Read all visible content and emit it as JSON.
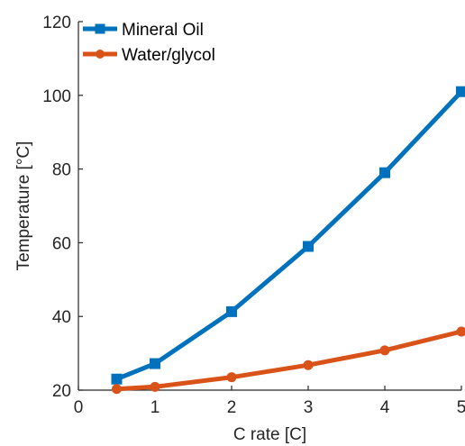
{
  "chart_data": {
    "type": "line",
    "title": "",
    "xlabel": "C rate [C]",
    "ylabel": "Temperature [°C]",
    "xlim": [
      0,
      5
    ],
    "ylim": [
      20,
      120
    ],
    "xticks": [
      0,
      1,
      2,
      3,
      4,
      5
    ],
    "yticks": [
      20,
      40,
      60,
      80,
      100,
      120
    ],
    "grid": false,
    "legend_position": "top-left",
    "series": [
      {
        "name": "Mineral Oil",
        "color": "#0072BD",
        "marker": "square",
        "x": [
          0.5,
          1,
          2,
          3,
          4,
          5
        ],
        "y": [
          23,
          27.2,
          41.3,
          59,
          79,
          101
        ]
      },
      {
        "name": "Water/glycol",
        "color": "#D95319",
        "marker": "circle",
        "x": [
          0.5,
          1,
          2,
          3,
          4,
          5
        ],
        "y": [
          20.3,
          20.9,
          23.5,
          26.8,
          30.8,
          35.9
        ]
      }
    ]
  }
}
